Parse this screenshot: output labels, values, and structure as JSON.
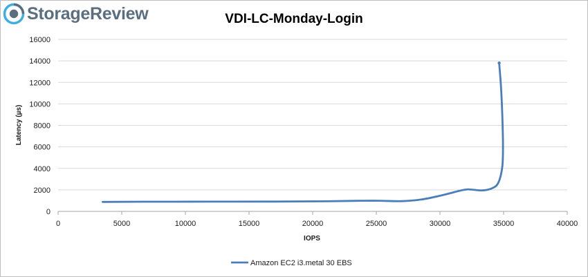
{
  "brand": {
    "logo_text": "StorageReview",
    "logo_icon": "storagereview-logo-icon",
    "logo_color": "#5b6e80",
    "logo_accent": "#41aee3"
  },
  "chart_data": {
    "type": "line",
    "title": "VDI-LC-Monday-Login",
    "xlabel": "IOPS",
    "ylabel": "Latency (µs)",
    "xlim": [
      0,
      40000
    ],
    "ylim": [
      0,
      16000
    ],
    "x_ticks": [
      "0",
      "5000",
      "10000",
      "15000",
      "20000",
      "25000",
      "30000",
      "35000",
      "40000"
    ],
    "y_ticks": [
      "0",
      "2000",
      "4000",
      "6000",
      "8000",
      "10000",
      "12000",
      "14000",
      "16000"
    ],
    "grid": "horizontal",
    "legend_position": "bottom",
    "series": [
      {
        "name": "Amazon EC2 i3.metal 30 EBS",
        "color": "#4a7ebb",
        "points": [
          [
            3500,
            880
          ],
          [
            7000,
            900
          ],
          [
            12000,
            905
          ],
          [
            17000,
            915
          ],
          [
            21000,
            940
          ],
          [
            23500,
            980
          ],
          [
            25200,
            990
          ],
          [
            27000,
            950
          ],
          [
            28500,
            1100
          ],
          [
            30000,
            1450
          ],
          [
            31500,
            1900
          ],
          [
            32200,
            2050
          ],
          [
            33300,
            1950
          ],
          [
            34100,
            2150
          ],
          [
            34600,
            2700
          ],
          [
            34900,
            4200
          ],
          [
            34950,
            6200
          ],
          [
            34900,
            8800
          ],
          [
            34800,
            11500
          ],
          [
            34650,
            13800
          ]
        ]
      }
    ]
  }
}
